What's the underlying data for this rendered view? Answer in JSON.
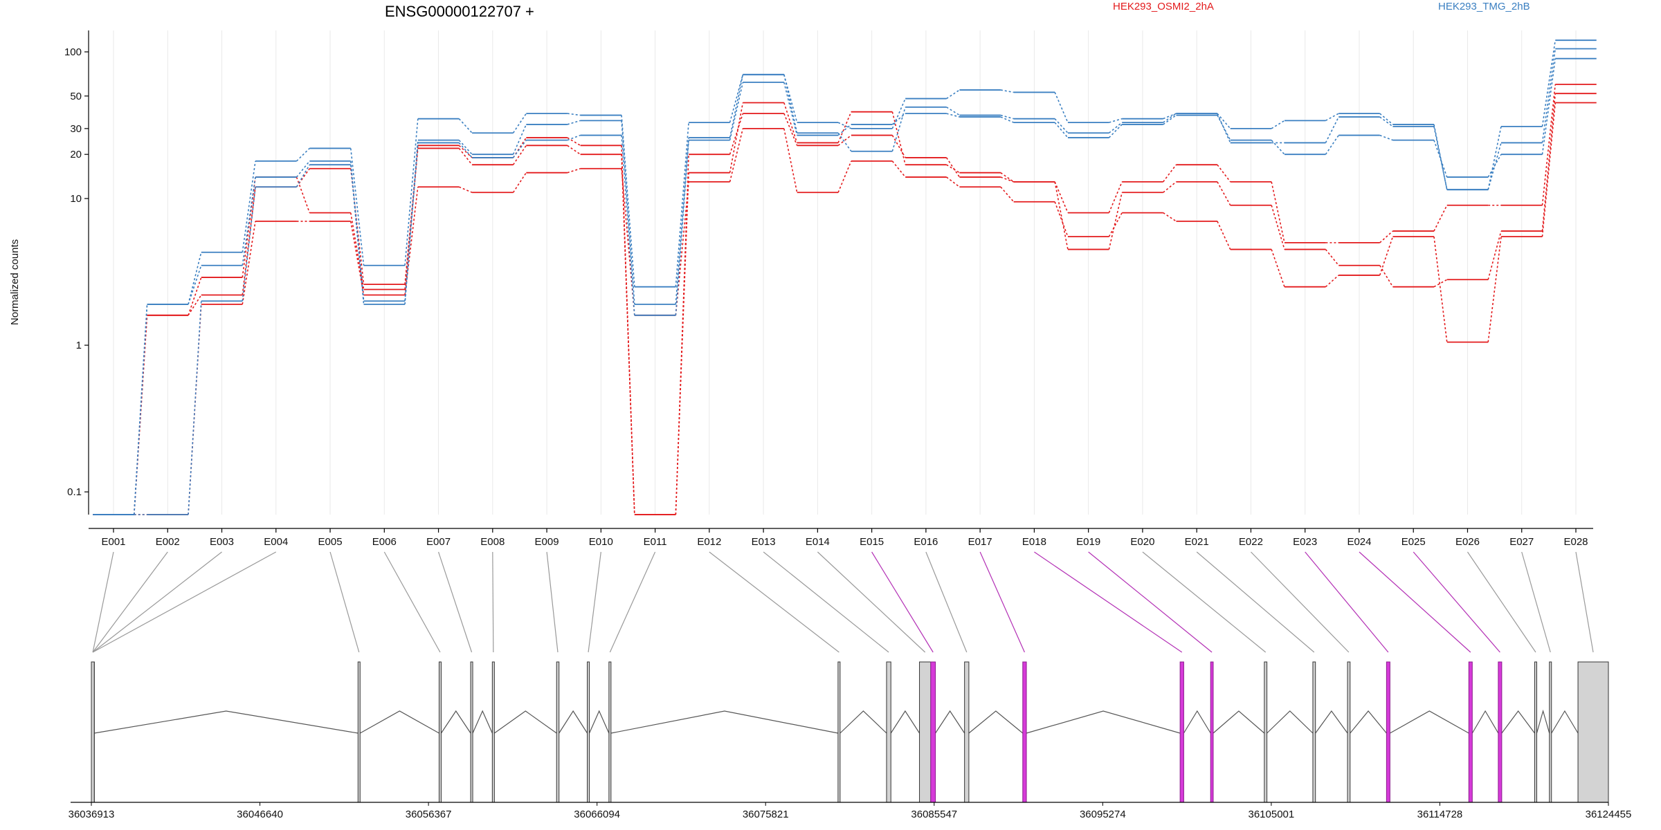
{
  "chart_data": {
    "type": "line",
    "title": "ENSG00000122707 +",
    "ylabel": "Normalized counts",
    "xlabel": "",
    "yscale": "log",
    "ylim": [
      0.07,
      140
    ],
    "y_ticks": [
      0.1,
      1,
      10,
      20,
      30,
      50,
      100
    ],
    "y_tick_labels": [
      "0.1",
      "1",
      "10",
      "20",
      "30",
      "50",
      "100"
    ],
    "grid": "vertical",
    "legend_placement": "top",
    "colors": {
      "HEK293_OSMI2_2hA": "#e31a1c",
      "HEK293_TMG_2hB": "#3a7fc1"
    },
    "categories": [
      "E001",
      "E002",
      "E003",
      "E004",
      "E005",
      "E006",
      "E007",
      "E008",
      "E009",
      "E010",
      "E011",
      "E012",
      "E013",
      "E014",
      "E015",
      "E016",
      "E017",
      "E018",
      "E019",
      "E020",
      "E021",
      "E022",
      "E023",
      "E024",
      "E025",
      "E026",
      "E027",
      "E028"
    ],
    "legend": [
      {
        "name": "HEK293_OSMI2_2hA",
        "color": "#e31a1c"
      },
      {
        "name": "HEK293_TMG_2hB",
        "color": "#3a7fc1"
      }
    ],
    "series": [
      {
        "group": "HEK293_OSMI2_2hA",
        "color": "#e31a1c",
        "values": [
          0.07,
          1.6,
          2.9,
          14,
          8,
          2.4,
          22,
          17,
          23,
          20,
          0.07,
          15,
          45,
          24,
          39,
          17,
          15,
          13,
          8,
          13,
          17,
          13,
          5,
          5,
          6,
          9,
          9,
          60
        ]
      },
      {
        "group": "HEK293_OSMI2_2hA",
        "color": "#e31a1c",
        "values": [
          0.07,
          1.6,
          2.2,
          12,
          16,
          2.6,
          23,
          19,
          26,
          23,
          0.07,
          20,
          38,
          23,
          27,
          19,
          14,
          13,
          4.5,
          11,
          13,
          9,
          4.5,
          3.5,
          2.5,
          2.8,
          6,
          52
        ]
      },
      {
        "group": "HEK293_OSMI2_2hA",
        "color": "#e31a1c",
        "values": [
          0.07,
          0.07,
          1.9,
          7,
          7,
          2.2,
          12,
          11,
          15,
          16,
          1.6,
          13,
          30,
          11,
          18,
          14,
          12,
          9.5,
          5.5,
          8,
          7,
          4.5,
          2.5,
          3,
          5.5,
          1.05,
          5.5,
          45
        ]
      },
      {
        "group": "HEK293_TMG_2hB",
        "color": "#3a7fc1",
        "values": [
          0.07,
          1.9,
          4.3,
          18,
          22,
          3.5,
          35,
          28,
          38,
          37,
          2.5,
          33,
          70,
          33,
          30,
          48,
          55,
          53,
          33,
          35,
          38,
          30,
          34,
          38,
          32,
          11.5,
          31,
          120
        ]
      },
      {
        "group": "HEK293_TMG_2hB",
        "color": "#3a7fc1",
        "values": [
          0.07,
          1.9,
          3.5,
          14,
          18,
          2.0,
          25,
          20,
          32,
          34,
          1.9,
          26,
          70,
          28,
          21,
          42,
          37,
          35,
          28,
          33,
          38,
          24,
          24,
          36,
          31,
          11.5,
          24,
          105
        ]
      },
      {
        "group": "HEK293_TMG_2hB",
        "color": "#3a7fc1",
        "values": [
          0.07,
          0.07,
          2.0,
          12,
          17,
          1.9,
          24,
          19,
          25,
          27,
          1.6,
          25,
          62,
          27,
          32,
          38,
          36,
          33,
          26,
          32,
          37,
          25,
          20,
          27,
          25,
          14,
          20,
          90
        ]
      }
    ],
    "gene_model": {
      "coordinate_ticks": [
        "36036913",
        "36046640",
        "36056367",
        "36066094",
        "36075821",
        "36085547",
        "36095274",
        "36105001",
        "36114728",
        "36124455"
      ],
      "coord_range": [
        36036913,
        36124455
      ],
      "exons": [
        {
          "id": "E001",
          "start": 36036913,
          "end": 36037080,
          "highlight": false
        },
        {
          "id": "E002",
          "start": 36036913,
          "end": 36037080,
          "highlight": false
        },
        {
          "id": "E003",
          "start": 36036913,
          "end": 36037080,
          "highlight": false
        },
        {
          "id": "E004",
          "start": 36036913,
          "end": 36037080,
          "highlight": false
        },
        {
          "id": "E005",
          "start": 36052300,
          "end": 36052420,
          "highlight": false
        },
        {
          "id": "E006",
          "start": 36056980,
          "end": 36057100,
          "highlight": false
        },
        {
          "id": "E007",
          "start": 36058800,
          "end": 36058920,
          "highlight": false
        },
        {
          "id": "E008",
          "start": 36060050,
          "end": 36060170,
          "highlight": false
        },
        {
          "id": "E009",
          "start": 36063760,
          "end": 36063900,
          "highlight": false
        },
        {
          "id": "E010",
          "start": 36065530,
          "end": 36065650,
          "highlight": false
        },
        {
          "id": "E011",
          "start": 36066780,
          "end": 36066900,
          "highlight": false
        },
        {
          "id": "E012",
          "start": 36080000,
          "end": 36080120,
          "highlight": false
        },
        {
          "id": "E013",
          "start": 36082800,
          "end": 36083050,
          "highlight": false
        },
        {
          "id": "E014",
          "start": 36084700,
          "end": 36085350,
          "highlight": false
        },
        {
          "id": "E015",
          "start": 36085350,
          "end": 36085620,
          "highlight": true
        },
        {
          "id": "E016",
          "start": 36087300,
          "end": 36087550,
          "highlight": false
        },
        {
          "id": "E017",
          "start": 36090660,
          "end": 36090870,
          "highlight": true
        },
        {
          "id": "E018",
          "start": 36099740,
          "end": 36099950,
          "highlight": true
        },
        {
          "id": "E019",
          "start": 36101500,
          "end": 36101650,
          "highlight": true
        },
        {
          "id": "E020",
          "start": 36104600,
          "end": 36104750,
          "highlight": false
        },
        {
          "id": "E021",
          "start": 36107400,
          "end": 36107550,
          "highlight": false
        },
        {
          "id": "E022",
          "start": 36109400,
          "end": 36109550,
          "highlight": false
        },
        {
          "id": "E023",
          "start": 36111650,
          "end": 36111850,
          "highlight": true
        },
        {
          "id": "E024",
          "start": 36116400,
          "end": 36116600,
          "highlight": true
        },
        {
          "id": "E025",
          "start": 36118100,
          "end": 36118300,
          "highlight": true
        },
        {
          "id": "E026",
          "start": 36120200,
          "end": 36120320,
          "highlight": false
        },
        {
          "id": "E027",
          "start": 36121050,
          "end": 36121170,
          "highlight": false
        },
        {
          "id": "E028",
          "start": 36122700,
          "end": 36124455,
          "highlight": false
        }
      ]
    }
  }
}
